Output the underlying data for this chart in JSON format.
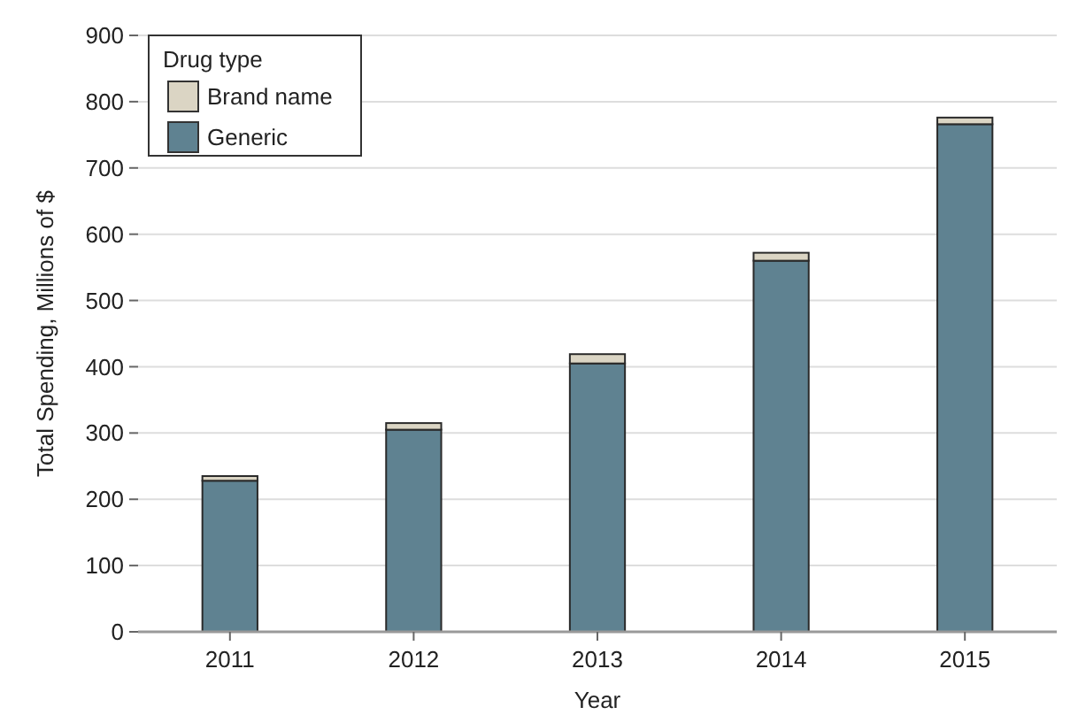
{
  "chart_data": {
    "type": "bar",
    "stacked": true,
    "xlabel": "Year",
    "ylabel": "Total Spending, Millions of $",
    "legend_title": "Drug type",
    "legend": "top left",
    "grid": "y",
    "categories": [
      "2011",
      "2012",
      "2013",
      "2014",
      "2015"
    ],
    "series": [
      {
        "name": "Generic",
        "color": "#5f8291",
        "values": [
          228,
          305,
          405,
          560,
          766
        ]
      },
      {
        "name": "Brand name",
        "color": "#dbd5c4",
        "values": [
          7,
          10,
          14,
          12,
          10
        ]
      }
    ],
    "ylim": [
      0,
      900
    ],
    "yticks": [
      0,
      100,
      200,
      300,
      400,
      500,
      600,
      700,
      800,
      900
    ]
  }
}
